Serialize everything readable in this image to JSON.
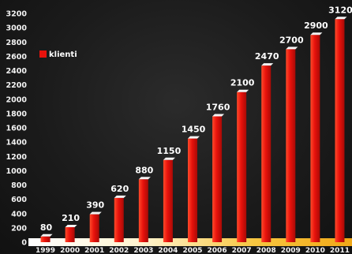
{
  "chart_data": {
    "type": "bar",
    "title": "",
    "xlabel": "",
    "ylabel": "",
    "categories": [
      "1999",
      "2000",
      "2001",
      "2002",
      "2003",
      "2004",
      "2005",
      "2006",
      "2007",
      "2008",
      "2009",
      "2010",
      "2011"
    ],
    "series": [
      {
        "name": "klienti",
        "values": [
          80,
          210,
          390,
          620,
          880,
          1150,
          1450,
          1760,
          2100,
          2470,
          2700,
          2900,
          3120
        ]
      }
    ],
    "data_labels": [
      "80",
      "210",
      "390",
      "620",
      "880",
      "1150",
      "1450",
      "1760",
      "2100",
      "2470",
      "2700",
      "2900",
      "3120"
    ],
    "ylim": [
      0,
      3200
    ],
    "yticks": [
      "0",
      "200",
      "400",
      "600",
      "800",
      "1000",
      "1200",
      "1400",
      "1600",
      "1800",
      "2000",
      "2200",
      "2400",
      "2600",
      "2800",
      "3000",
      "3200"
    ],
    "grid": false,
    "legend_position": "top-left",
    "colors": {
      "bar": "#e8120c",
      "bar_highlight": "#ff5a3c",
      "cap": "#f4f4f4",
      "background": "#1b1b1b",
      "floor": "#f5c24a"
    }
  }
}
